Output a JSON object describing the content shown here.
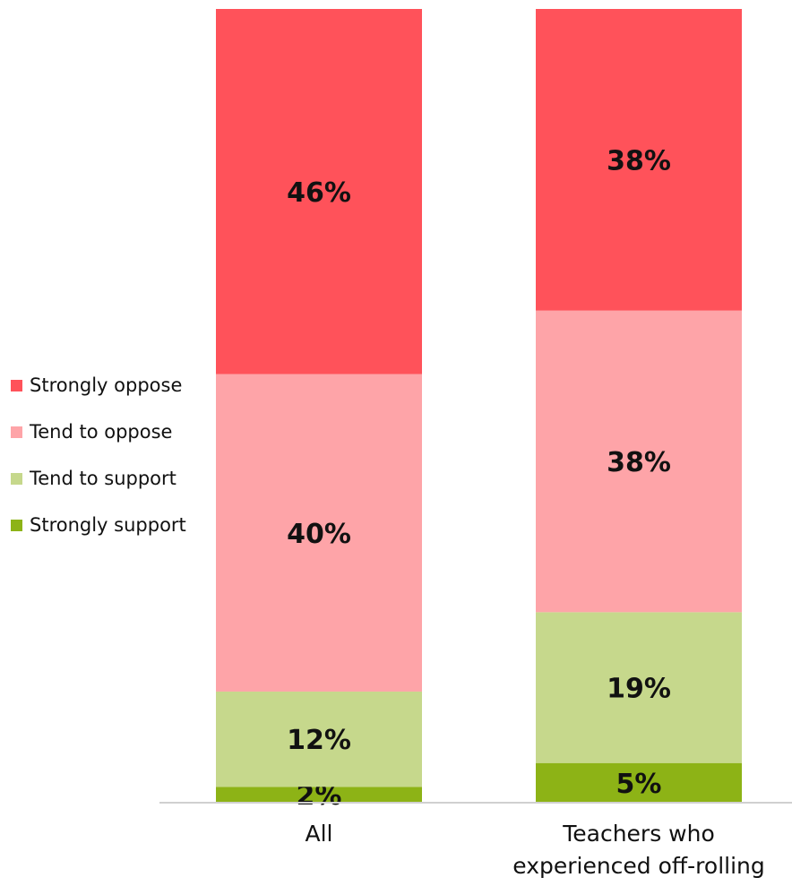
{
  "chart_data": {
    "type": "bar",
    "stacked": true,
    "normalized_percent": true,
    "categories": [
      [
        "All"
      ],
      [
        "Teachers who",
        "experienced off-rolling"
      ]
    ],
    "series": [
      {
        "name": "Strongly support",
        "values": [
          2,
          5
        ],
        "labels": [
          "2%",
          "5%"
        ],
        "color": "#8db316"
      },
      {
        "name": "Tend to support",
        "values": [
          12,
          19
        ],
        "labels": [
          "12%",
          "19%"
        ],
        "color": "#c6d88c"
      },
      {
        "name": "Tend to oppose",
        "values": [
          40,
          38
        ],
        "labels": [
          "40%",
          "38%"
        ],
        "color": "#fea4a8"
      },
      {
        "name": "Strongly oppose",
        "values": [
          46,
          38
        ],
        "labels": [
          "46%",
          "38%"
        ],
        "color": "#ff525a"
      }
    ],
    "legend_order": [
      "Strongly oppose",
      "Tend to oppose",
      "Tend to support",
      "Strongly support"
    ],
    "legend_position": "left",
    "title": "",
    "xlabel": "",
    "ylabel": "",
    "axis_color": "#d0d0d0"
  }
}
